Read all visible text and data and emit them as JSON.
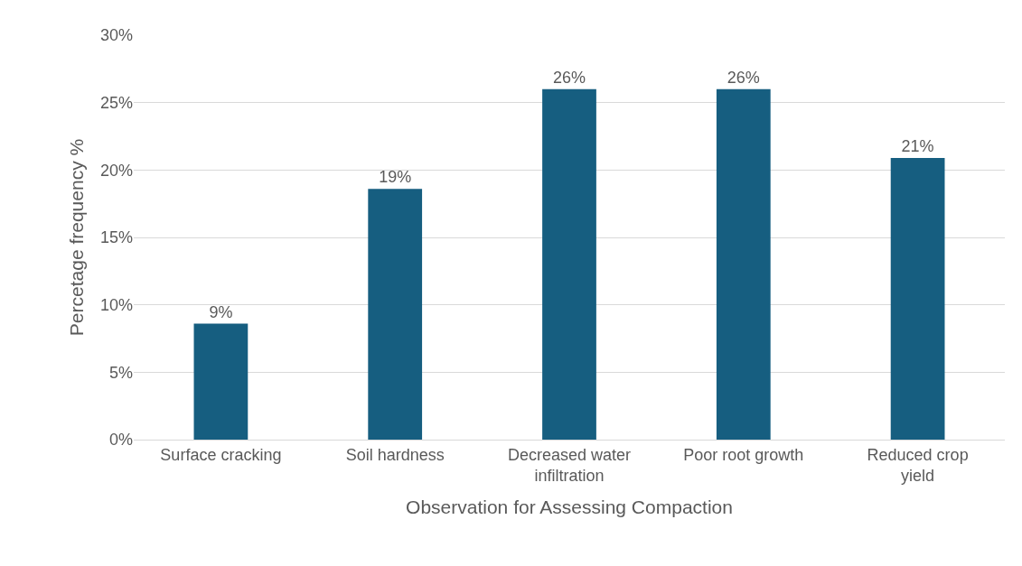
{
  "chart_data": {
    "type": "bar",
    "xlabel": "Observation for Assessing Compaction",
    "ylabel": "Percetage frequency %",
    "categories": [
      "Surface cracking",
      "Soil hardness",
      "Decreased water infiltration",
      "Poor root growth",
      "Reduced crop yield"
    ],
    "values": [
      8.6,
      18.6,
      26,
      26,
      20.9
    ],
    "value_labels": [
      "9%",
      "19%",
      "26%",
      "26%",
      "21%"
    ],
    "color": "#165e80",
    "ylim": [
      0,
      30
    ],
    "yticks": [
      {
        "value": 0,
        "label": "0%"
      },
      {
        "value": 5,
        "label": "5%"
      },
      {
        "value": 10,
        "label": "10%"
      },
      {
        "value": 15,
        "label": "15%"
      },
      {
        "value": 20,
        "label": "20%"
      },
      {
        "value": 25,
        "label": "25%"
      },
      {
        "value": 30,
        "label": "30%"
      }
    ],
    "grid": "y"
  }
}
